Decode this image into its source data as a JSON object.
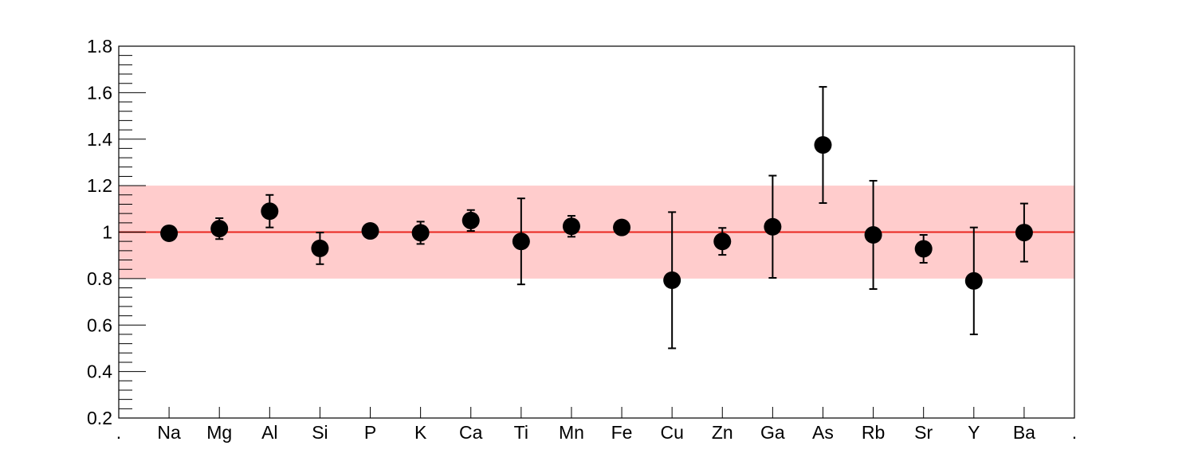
{
  "chart_data": {
    "type": "scatter",
    "title": "",
    "xlabel": "",
    "ylabel": "",
    "categories": [
      ".",
      "Na",
      "Mg",
      "Al",
      "Si",
      "P",
      "K",
      "Ca",
      "Ti",
      "Mn",
      "Fe",
      "Cu",
      "Zn",
      "Ga",
      "As",
      "Rb",
      "Sr",
      "Y",
      "Ba",
      "."
    ],
    "ylim": [
      0.2,
      1.8
    ],
    "yticks": [
      "0.2",
      "0.4",
      "0.6",
      "0.8",
      "1",
      "1.2",
      "1.4",
      "1.6",
      "1.8"
    ],
    "reference_line": 1.0,
    "band": [
      0.8,
      1.2
    ],
    "grid": false,
    "legend": "none",
    "series": [
      {
        "points": [
          {
            "x": "Na",
            "y": 0.995,
            "err": 0.0
          },
          {
            "x": "Mg",
            "y": 1.015,
            "err": 0.045
          },
          {
            "x": "Al",
            "y": 1.09,
            "err": 0.07
          },
          {
            "x": "Si",
            "y": 0.93,
            "err": 0.068
          },
          {
            "x": "P",
            "y": 1.005,
            "err": 0.0
          },
          {
            "x": "K",
            "y": 0.997,
            "err": 0.048
          },
          {
            "x": "Ca",
            "y": 1.05,
            "err": 0.045
          },
          {
            "x": "Ti",
            "y": 0.96,
            "err": 0.185
          },
          {
            "x": "Mn",
            "y": 1.025,
            "err": 0.045
          },
          {
            "x": "Fe",
            "y": 1.02,
            "err": 0.0
          },
          {
            "x": "Cu",
            "y": 0.793,
            "err": 0.293
          },
          {
            "x": "Zn",
            "y": 0.96,
            "err": 0.058
          },
          {
            "x": "Ga",
            "y": 1.023,
            "err": 0.22
          },
          {
            "x": "As",
            "y": 1.375,
            "err": 0.25
          },
          {
            "x": "Rb",
            "y": 0.988,
            "err": 0.233
          },
          {
            "x": "Sr",
            "y": 0.928,
            "err": 0.06
          },
          {
            "x": "Y",
            "y": 0.79,
            "err": 0.23
          },
          {
            "x": "Ba",
            "y": 0.998,
            "err": 0.125
          }
        ]
      }
    ],
    "colors": {
      "band": "#ffcccc",
      "reference_line": "#e8261e",
      "points": "#000000",
      "axes": "#000000"
    }
  }
}
